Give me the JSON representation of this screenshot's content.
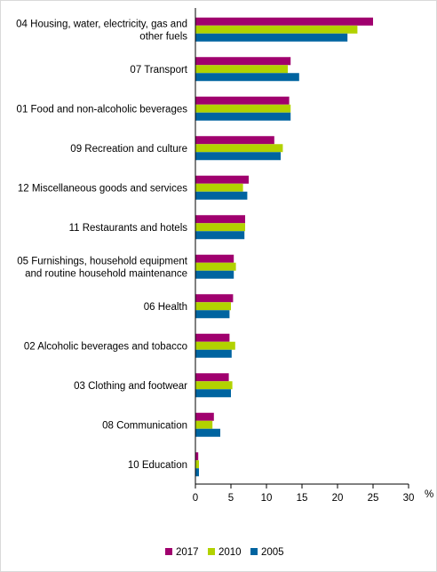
{
  "chart_data": {
    "type": "bar",
    "orientation": "horizontal",
    "categories": [
      [
        "04 Housing, water, electricity, gas and",
        "other fuels"
      ],
      [
        "07 Transport"
      ],
      [
        "01 Food and non-alcoholic beverages"
      ],
      [
        "09 Recreation and culture"
      ],
      [
        "12 Miscellaneous goods and services"
      ],
      [
        "11 Restaurants and hotels"
      ],
      [
        "05 Furnishings, household equipment",
        "and routine household maintenance"
      ],
      [
        "06 Health"
      ],
      [
        "02 Alcoholic beverages and tobacco"
      ],
      [
        "03 Clothing and footwear"
      ],
      [
        "08 Communication"
      ],
      [
        "10 Education"
      ]
    ],
    "series": [
      {
        "name": "2017",
        "color": "#a0006e",
        "values": [
          25.0,
          13.4,
          13.2,
          11.1,
          7.5,
          7.0,
          5.4,
          5.3,
          4.8,
          4.7,
          2.6,
          0.4
        ]
      },
      {
        "name": "2010",
        "color": "#b2d200",
        "values": [
          22.8,
          13.0,
          13.4,
          12.3,
          6.7,
          7.0,
          5.7,
          5.0,
          5.6,
          5.2,
          2.4,
          0.5
        ]
      },
      {
        "name": "2005",
        "color": "#0064a0",
        "values": [
          21.4,
          14.6,
          13.4,
          12.0,
          7.3,
          6.9,
          5.4,
          4.8,
          5.1,
          5.0,
          3.5,
          0.5
        ]
      }
    ],
    "xlim": [
      0,
      30
    ],
    "xticks": [
      "0",
      "5",
      "10",
      "15",
      "20",
      "25",
      "30"
    ],
    "xunit": "%",
    "grid": false,
    "legend_position": "bottom"
  }
}
